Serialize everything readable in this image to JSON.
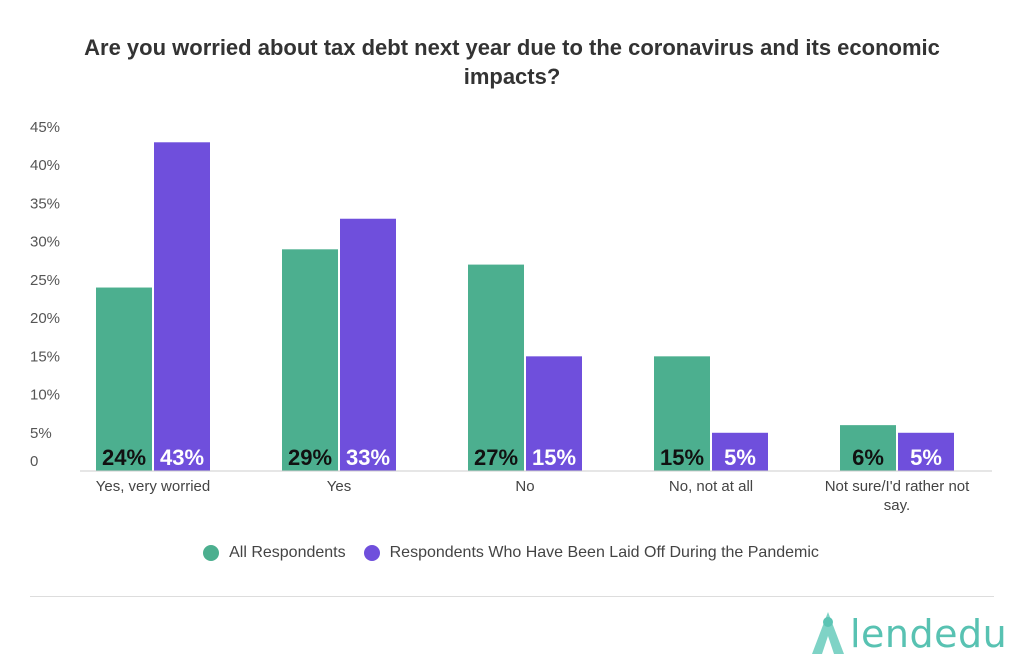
{
  "chart_data": {
    "type": "bar",
    "title": "Are you worried about tax debt next year due to the coronavirus and its economic impacts?",
    "categories": [
      "Yes, very worried",
      "Yes",
      "No",
      "No, not at all",
      "Not sure/I'd rather not say."
    ],
    "series": [
      {
        "name": "All Respondents",
        "color": "#4caf8f",
        "values": [
          24,
          29,
          27,
          15,
          6
        ],
        "labels": [
          "24%",
          "29%",
          "27%",
          "15%",
          "6%"
        ]
      },
      {
        "name": "Respondents Who Have Been Laid Off During the Pandemic",
        "color": "#6f4fdc",
        "values": [
          43,
          33,
          15,
          5,
          5
        ],
        "labels": [
          "43%",
          "33%",
          "15%",
          "5%",
          "5%"
        ]
      }
    ],
    "yticks": [
      "0",
      "5%",
      "10%",
      "15%",
      "20%",
      "25%",
      "30%",
      "35%",
      "40%",
      "45%"
    ],
    "ylim": [
      0,
      45
    ],
    "legend_position": "bottom",
    "grid": false
  },
  "logo": {
    "text": "lendedu"
  }
}
